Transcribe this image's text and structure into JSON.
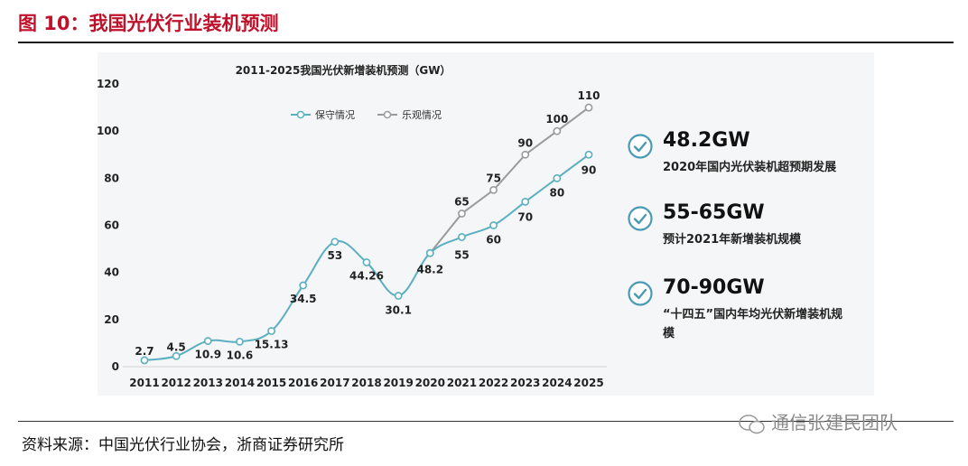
{
  "figure": {
    "title": "图 10：我国光伏行业装机预测",
    "source": "资料来源：中国光伏行业协会，浙商证券研究所",
    "watermark": "通信张建民团队",
    "colors": {
      "title": "#c0112b",
      "conservative": "#5aafc0",
      "optimistic": "#9a9a9a",
      "accent": "#4a9ab4"
    }
  },
  "chart_data": {
    "type": "line",
    "title": "2011-2025我国光伏新增装机预测（GW）",
    "xlabel": "",
    "ylabel": "",
    "ylim": [
      0,
      120
    ],
    "yticks": [
      0,
      20,
      40,
      60,
      80,
      100,
      120
    ],
    "grid": false,
    "legend_position": "top-left",
    "categories": [
      "2011",
      "2012",
      "2013",
      "2014",
      "2015",
      "2016",
      "2017",
      "2018",
      "2019",
      "2020",
      "2021",
      "2022",
      "2023",
      "2024",
      "2025"
    ],
    "series": [
      {
        "name": "保守情况",
        "values": [
          2.7,
          4.5,
          10.9,
          10.6,
          15.13,
          34.5,
          53,
          44.26,
          30.1,
          48.2,
          55,
          60,
          70,
          80,
          90
        ],
        "labels": [
          "2.7",
          "4.5",
          "10.9",
          "10.6",
          "15.13",
          "34.5",
          "53",
          "44.26",
          "30.1",
          "48.2",
          "55",
          "60",
          "70",
          "80",
          "90"
        ]
      },
      {
        "name": "乐观情况",
        "values": [
          null,
          null,
          null,
          null,
          null,
          null,
          null,
          null,
          null,
          48.2,
          65,
          75,
          90,
          100,
          110
        ],
        "labels": [
          "",
          "",
          "",
          "",
          "",
          "",
          "",
          "",
          "",
          "",
          "65",
          "75",
          "90",
          "100",
          "110"
        ]
      }
    ]
  },
  "kpis": [
    {
      "value": "48.2GW",
      "desc": "2020年国内光伏装机超预期发展"
    },
    {
      "value": "55-65GW",
      "desc": "预计2021年新增装机规模"
    },
    {
      "value": "70-90GW",
      "desc": "“十四五”国内年均光伏新增装机规模"
    }
  ]
}
